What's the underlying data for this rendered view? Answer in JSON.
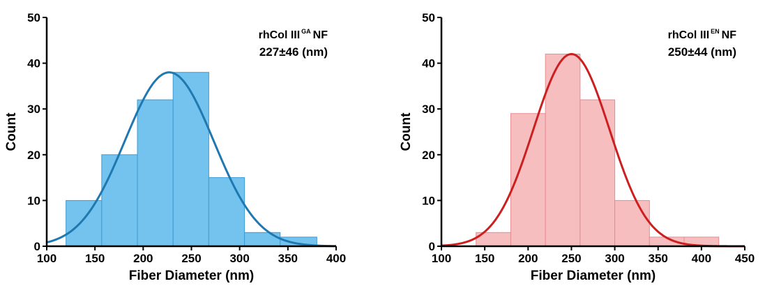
{
  "chart_data": [
    {
      "type": "bar",
      "xlabel": "Fiber Diameter (nm)",
      "ylabel": "Count",
      "xlim": [
        100,
        400
      ],
      "ylim": [
        0,
        50
      ],
      "xticks": [
        100,
        150,
        200,
        250,
        300,
        350,
        400
      ],
      "yticks": [
        0,
        10,
        20,
        30,
        40,
        50
      ],
      "grid": false,
      "bar_color": "#73C3EE",
      "bar_edge": "#3D9BD2",
      "curve_color": "#1F78B0",
      "annotation": {
        "name": "rhCol III",
        "superscript": "GA",
        "suffix": "NF",
        "stats": "227±46 (nm)"
      },
      "bins": [
        {
          "x0": 120,
          "x1": 157,
          "count": 10
        },
        {
          "x0": 157,
          "x1": 194,
          "count": 20
        },
        {
          "x0": 194,
          "x1": 231,
          "count": 32
        },
        {
          "x0": 231,
          "x1": 268,
          "count": 38
        },
        {
          "x0": 268,
          "x1": 305,
          "count": 15
        },
        {
          "x0": 305,
          "x1": 342,
          "count": 3
        },
        {
          "x0": 342,
          "x1": 380,
          "count": 2
        }
      ],
      "fit_curve": {
        "type": "gaussian",
        "mean": 227,
        "sd": 46,
        "peak": 38
      }
    },
    {
      "type": "bar",
      "xlabel": "Fiber Diameter (nm)",
      "ylabel": "Count",
      "xlim": [
        100,
        450
      ],
      "ylim": [
        0,
        50
      ],
      "xticks": [
        100,
        150,
        200,
        250,
        300,
        350,
        400,
        450
      ],
      "yticks": [
        0,
        10,
        20,
        30,
        40,
        50
      ],
      "grid": false,
      "bar_color": "#F7BEC0",
      "bar_edge": "#E58C91",
      "curve_color": "#CC1F1F",
      "annotation": {
        "name": "rhCol III",
        "superscript": "EN",
        "suffix": "NF",
        "stats": "250±44 (nm)"
      },
      "bins": [
        {
          "x0": 140,
          "x1": 180,
          "count": 3
        },
        {
          "x0": 180,
          "x1": 220,
          "count": 29
        },
        {
          "x0": 220,
          "x1": 260,
          "count": 42
        },
        {
          "x0": 260,
          "x1": 300,
          "count": 32
        },
        {
          "x0": 300,
          "x1": 340,
          "count": 10
        },
        {
          "x0": 340,
          "x1": 380,
          "count": 2
        },
        {
          "x0": 380,
          "x1": 420,
          "count": 2
        }
      ],
      "fit_curve": {
        "type": "gaussian",
        "mean": 250,
        "sd": 44,
        "peak": 42
      }
    }
  ]
}
